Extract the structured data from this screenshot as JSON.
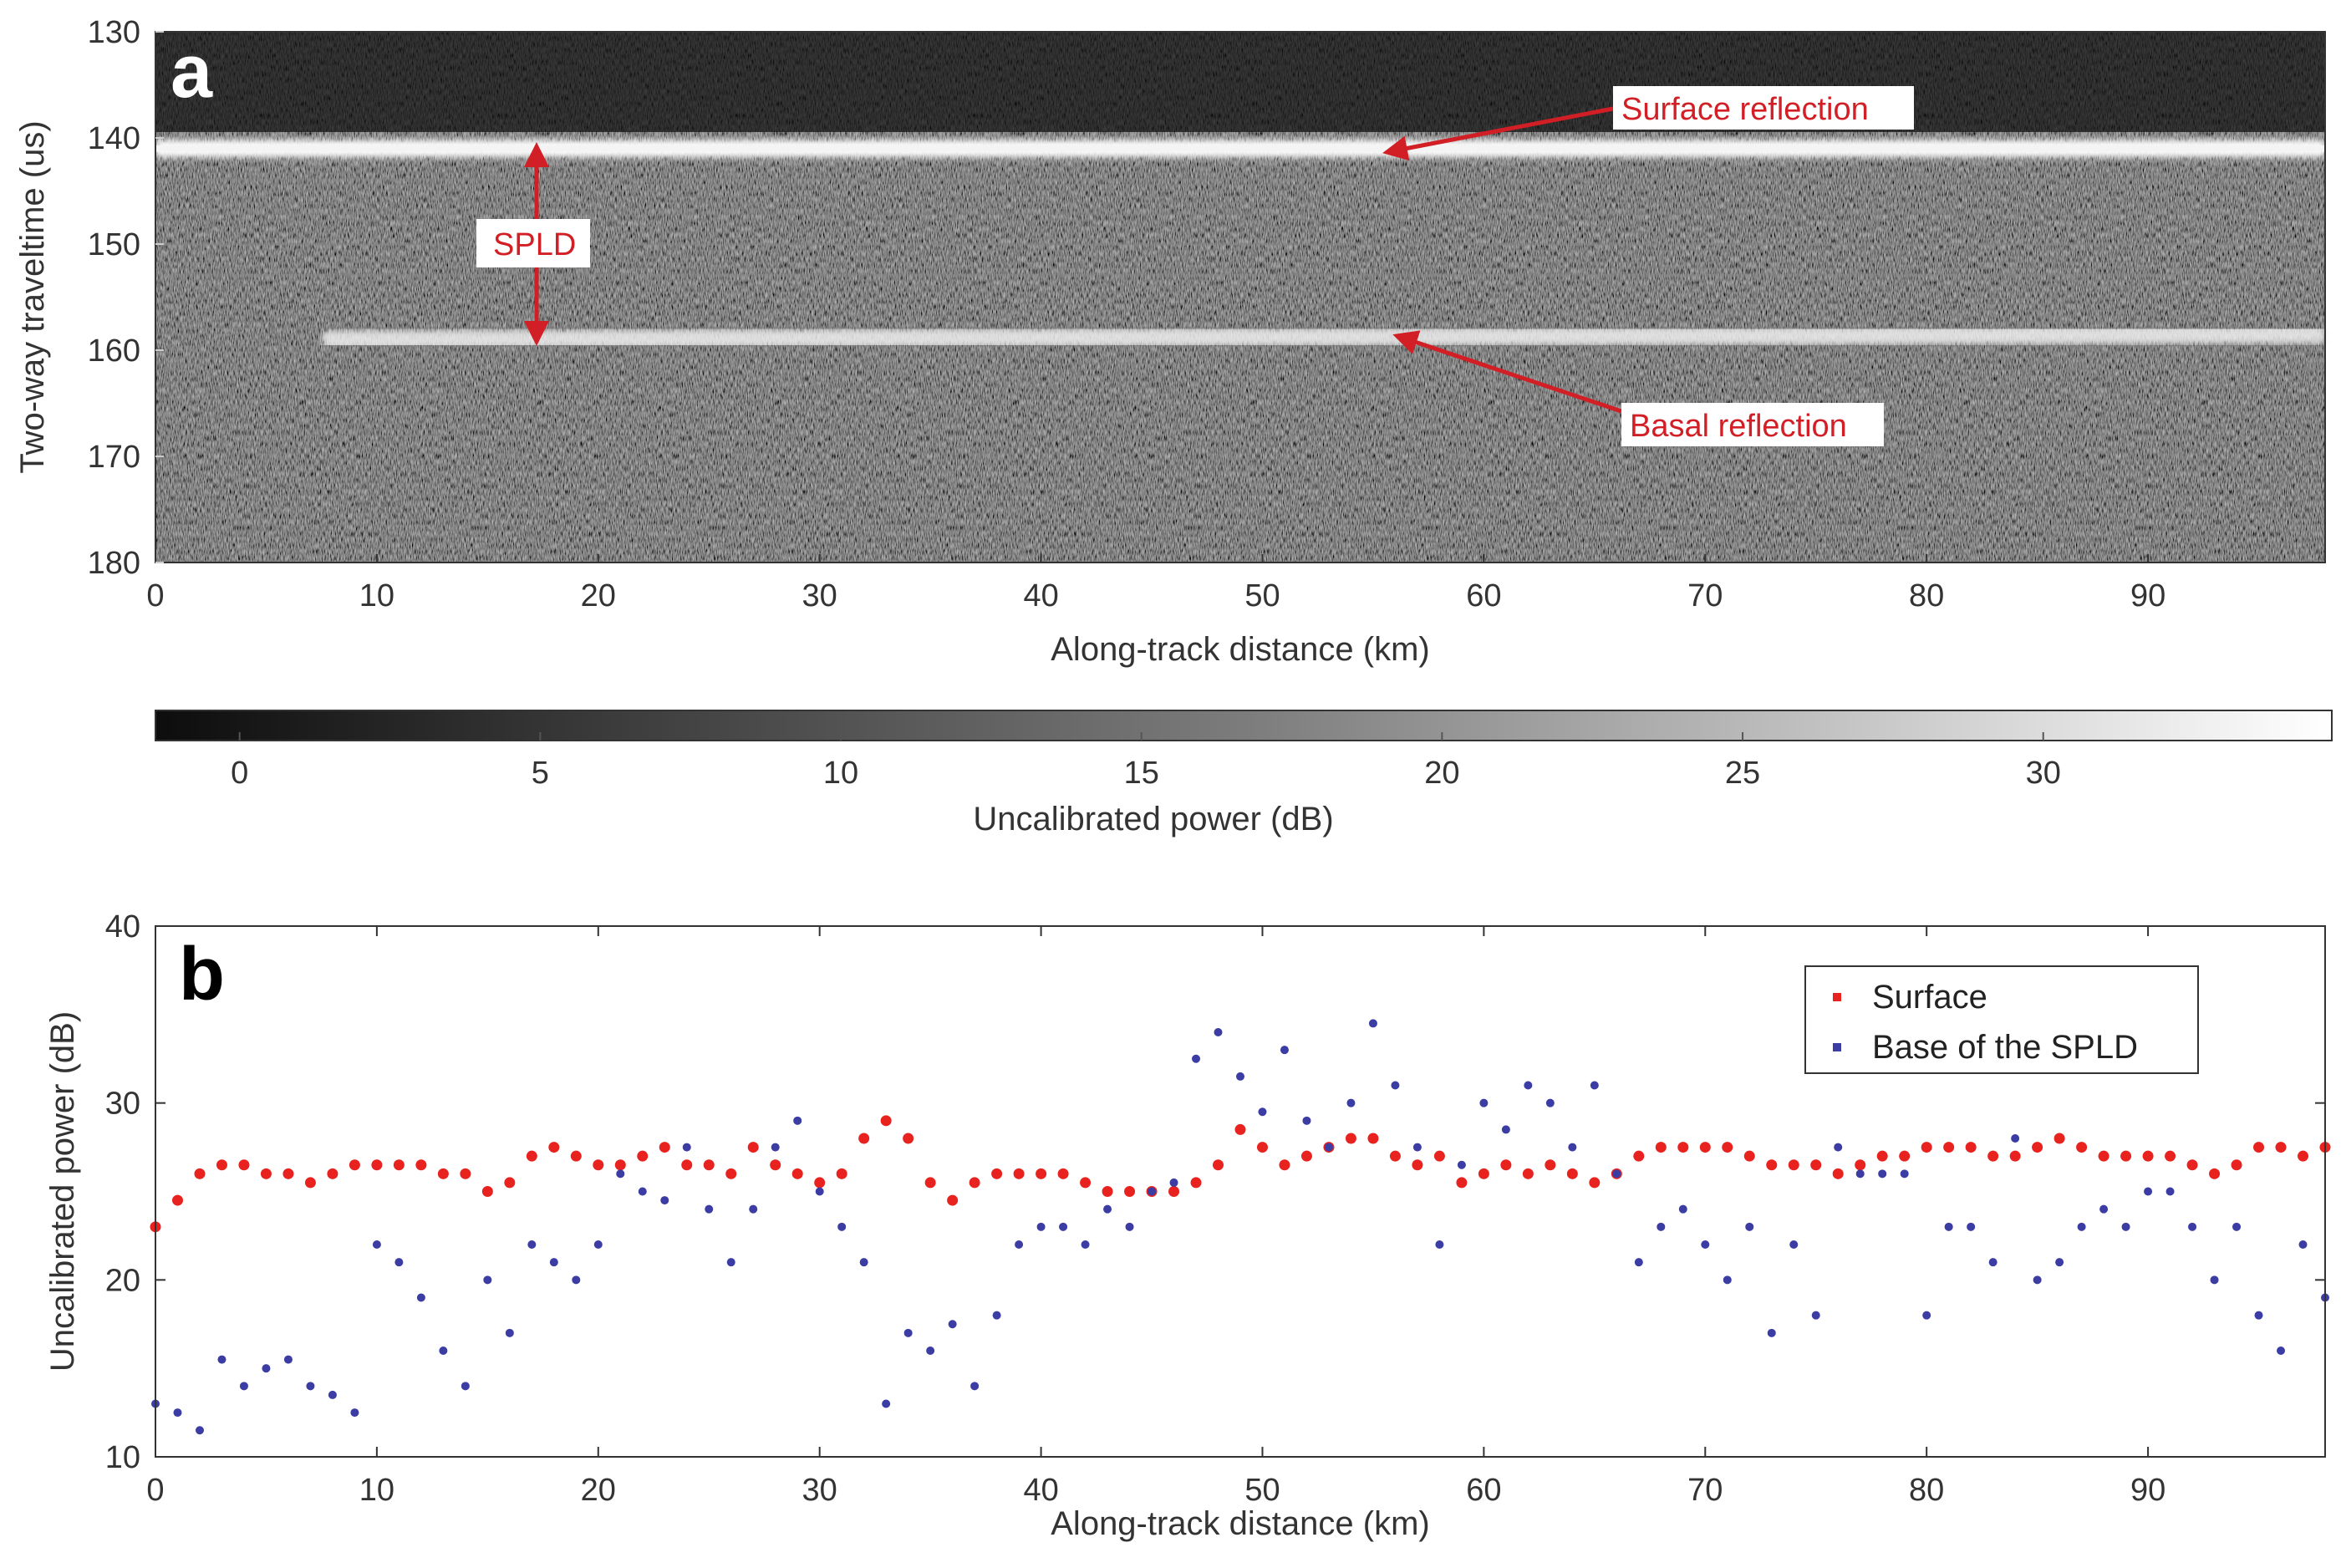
{
  "panel_a": {
    "label": "a",
    "annotations": {
      "surface": "Surface reflection",
      "basal": "Basal reflection",
      "spld": "SPLD"
    }
  },
  "panel_b": {
    "label": "b"
  },
  "colorbar": {
    "label": "Uncalibrated power (dB)",
    "ticks": [
      0,
      5,
      10,
      15,
      20,
      25,
      30
    ],
    "range": [
      -1.4,
      34.8
    ]
  },
  "chart_data": [
    {
      "type": "heatmap",
      "title": "",
      "xlabel": "Along-track distance (km)",
      "ylabel": "Two-way traveltime (us)",
      "xlim": [
        0,
        98
      ],
      "ylim": [
        180,
        130
      ],
      "xticks": [
        0,
        10,
        20,
        30,
        40,
        50,
        60,
        70,
        80,
        90
      ],
      "yticks": [
        130,
        140,
        150,
        160,
        170,
        180
      ],
      "layers": [
        {
          "name": "Surface reflection",
          "traveltime_us": 141
        },
        {
          "name": "Basal reflection",
          "traveltime_us_start": 159,
          "traveltime_us_end": 158.5
        }
      ]
    },
    {
      "type": "scatter",
      "title": "",
      "xlabel": "Along-track distance (km)",
      "ylabel": "Uncalibrated power (dB)",
      "xlim": [
        0,
        98
      ],
      "ylim": [
        10,
        40
      ],
      "xticks": [
        0,
        10,
        20,
        30,
        40,
        50,
        60,
        70,
        80,
        90
      ],
      "yticks": [
        10,
        20,
        30,
        40
      ],
      "legend_position": "top-right",
      "series": [
        {
          "name": "Surface",
          "color": "#e8231f",
          "x": [
            0,
            1,
            2,
            3,
            4,
            5,
            6,
            7,
            8,
            9,
            10,
            11,
            12,
            13,
            14,
            15,
            16,
            17,
            18,
            19,
            20,
            21,
            22,
            23,
            24,
            25,
            26,
            27,
            28,
            29,
            30,
            31,
            32,
            33,
            34,
            35,
            36,
            37,
            38,
            39,
            40,
            41,
            42,
            43,
            44,
            45,
            46,
            47,
            48,
            49,
            50,
            51,
            52,
            53,
            54,
            55,
            56,
            57,
            58,
            59,
            60,
            61,
            62,
            63,
            64,
            65,
            66,
            67,
            68,
            69,
            70,
            71,
            72,
            73,
            74,
            75,
            76,
            77,
            78,
            79,
            80,
            81,
            82,
            83,
            84,
            85,
            86,
            87,
            88,
            89,
            90,
            91,
            92,
            93,
            94,
            95,
            96,
            97,
            98
          ],
          "y": [
            23,
            24.5,
            26,
            26.5,
            26.5,
            26,
            26,
            25.5,
            26,
            26.5,
            26.5,
            26.5,
            26.5,
            26,
            26,
            25,
            25.5,
            27,
            27.5,
            27,
            26.5,
            26.5,
            27,
            27.5,
            26.5,
            26.5,
            26,
            27.5,
            26.5,
            26,
            25.5,
            26,
            28,
            29,
            28,
            25.5,
            24.5,
            25.5,
            26,
            26,
            26,
            26,
            25.5,
            25,
            25,
            25,
            25,
            25.5,
            26.5,
            28.5,
            27.5,
            26.5,
            27,
            27.5,
            28,
            28,
            27,
            26.5,
            27,
            25.5,
            26,
            26.5,
            26,
            26.5,
            26,
            25.5,
            26,
            27,
            27.5,
            27.5,
            27.5,
            27.5,
            27,
            26.5,
            26.5,
            26.5,
            26,
            26.5,
            27,
            27,
            27.5,
            27.5,
            27.5,
            27,
            27,
            27.5,
            28,
            27.5,
            27,
            27,
            27,
            27,
            26.5,
            26,
            26.5,
            27.5,
            27.5,
            27,
            27.5
          ]
        },
        {
          "name": "Base of the SPLD",
          "color": "#3b3ca4",
          "x": [
            0,
            1,
            2,
            3,
            4,
            5,
            6,
            7,
            8,
            9,
            10,
            11,
            12,
            13,
            14,
            15,
            16,
            17,
            18,
            19,
            20,
            21,
            22,
            23,
            24,
            25,
            26,
            27,
            28,
            29,
            30,
            31,
            32,
            33,
            34,
            35,
            36,
            37,
            38,
            39,
            40,
            41,
            42,
            43,
            44,
            45,
            46,
            47,
            48,
            49,
            50,
            51,
            52,
            53,
            54,
            55,
            56,
            57,
            58,
            59,
            60,
            61,
            62,
            63,
            64,
            65,
            66,
            67,
            68,
            69,
            70,
            71,
            72,
            73,
            74,
            75,
            76,
            77,
            78,
            79,
            80,
            81,
            82,
            83,
            84,
            85,
            86,
            87,
            88,
            89,
            90,
            91,
            92,
            93,
            94,
            95,
            96,
            97,
            98
          ],
          "y": [
            13,
            12.5,
            11.5,
            15.5,
            14,
            15,
            15.5,
            14,
            13.5,
            12.5,
            22,
            21,
            19,
            16,
            14,
            20,
            17,
            22,
            21,
            20,
            22,
            26,
            25,
            24.5,
            27.5,
            24,
            21,
            24,
            27.5,
            29,
            25,
            23,
            21,
            13,
            17,
            16,
            17.5,
            14,
            18,
            22,
            23,
            23,
            22,
            24,
            23,
            25,
            25.5,
            32.5,
            34,
            31.5,
            29.5,
            33,
            29,
            27.5,
            30,
            34.5,
            31,
            27.5,
            22,
            26.5,
            30,
            28.5,
            31,
            30,
            27.5,
            31,
            26,
            21,
            23,
            24,
            22,
            20,
            23,
            17,
            22,
            18,
            27.5,
            26,
            26,
            26,
            18,
            23,
            23,
            21,
            28,
            20,
            21,
            23,
            24,
            23,
            25,
            25,
            23,
            20,
            23,
            18,
            16,
            22,
            19
          ]
        }
      ]
    }
  ]
}
